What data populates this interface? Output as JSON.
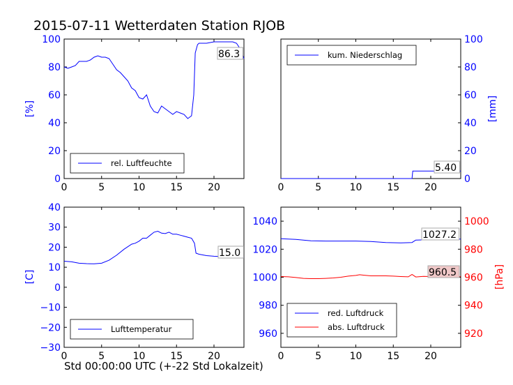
{
  "figure": {
    "title": "2015-07-11 Wetterdaten Station RJOB",
    "xlabel": "Std 00:00:00 UTC (+-22 Std Lokalzeit)"
  },
  "chart_data": [
    {
      "type": "line",
      "panel": "top-left",
      "ylabel": "[%]",
      "xlim": [
        0,
        24
      ],
      "ylim": [
        0,
        100
      ],
      "xticks": [
        0,
        5,
        10,
        15,
        20
      ],
      "yticks": [
        0,
        20,
        40,
        60,
        80,
        100
      ],
      "legend": "lower-left",
      "legend_entries": [
        "rel. Luftfeuchte"
      ],
      "annotation": "86.3",
      "series": [
        {
          "name": "rel. Luftfeuchte",
          "color": "#0000ff",
          "x": [
            0,
            0.5,
            1,
            1.5,
            2,
            2.5,
            3,
            3.5,
            4,
            4.5,
            5,
            5.5,
            6,
            6.5,
            7,
            7.5,
            8,
            8.5,
            9,
            9.5,
            10,
            10.5,
            11,
            11.5,
            12,
            12.5,
            13,
            13.5,
            14,
            14.5,
            15,
            15.5,
            16,
            16.5,
            17,
            17.3,
            17.5,
            17.8,
            18,
            19,
            20,
            21,
            22,
            22.5,
            23,
            23.5,
            24
          ],
          "y": [
            80,
            79,
            80,
            81,
            84,
            84,
            84,
            85,
            87,
            88,
            87,
            87,
            86,
            82,
            78,
            76,
            73,
            70,
            65,
            63,
            58,
            57,
            60,
            52,
            48,
            47,
            52,
            50,
            48,
            46,
            48,
            47,
            46,
            43,
            45,
            60,
            90,
            96,
            97,
            97,
            98,
            98,
            98,
            98,
            97,
            93,
            86
          ]
        }
      ]
    },
    {
      "type": "line",
      "panel": "top-right",
      "ylabel": "[mm]",
      "xlim": [
        0,
        24
      ],
      "ylim": [
        0,
        100
      ],
      "xticks": [
        0,
        5,
        10,
        15,
        20
      ],
      "yticks": [
        0,
        20,
        40,
        60,
        80,
        100
      ],
      "legend": "upper-left",
      "legend_entries": [
        "kum. Niederschlag"
      ],
      "annotation": "5.40",
      "series": [
        {
          "name": "kum. Niederschlag",
          "color": "#0000ff",
          "x": [
            0,
            17.5,
            17.6,
            24
          ],
          "y": [
            0,
            0,
            5.4,
            5.4
          ]
        }
      ]
    },
    {
      "type": "line",
      "panel": "bottom-left",
      "ylabel": "[C]",
      "xlim": [
        0,
        24
      ],
      "ylim": [
        -30,
        40
      ],
      "xticks": [
        0,
        5,
        10,
        15,
        20
      ],
      "yticks": [
        -30,
        -20,
        -10,
        0,
        10,
        20,
        30,
        40
      ],
      "legend": "lower-left",
      "legend_entries": [
        "Lufttemperatur"
      ],
      "annotation": "15.0",
      "series": [
        {
          "name": "Lufttemperatur",
          "color": "#0000ff",
          "x": [
            0,
            1,
            2,
            3,
            4,
            5,
            6,
            7,
            8,
            9,
            9.5,
            10,
            10.5,
            11,
            11.5,
            12,
            12.5,
            13,
            13.5,
            14,
            14.5,
            15,
            15.5,
            16,
            16.5,
            17,
            17.4,
            17.6,
            18,
            19,
            20,
            21,
            22,
            23,
            24
          ],
          "y": [
            13,
            12.7,
            12,
            11.8,
            11.7,
            12,
            13.5,
            16,
            19,
            21.5,
            22,
            23,
            24.5,
            24.5,
            26,
            27.5,
            28,
            27,
            26.8,
            27.5,
            26.5,
            26.5,
            26,
            25.5,
            25,
            24.5,
            22,
            17,
            16.5,
            15.8,
            15.5,
            15.3,
            15.3,
            15.1,
            15
          ]
        }
      ]
    },
    {
      "type": "line",
      "panel": "bottom-right",
      "ylabel": "[hPa]",
      "xlim": [
        0,
        24
      ],
      "ylim_left": [
        950,
        1050
      ],
      "ylim_right": [
        910,
        1010
      ],
      "xticks": [
        0,
        5,
        10,
        15,
        20
      ],
      "yticks_left": [
        960,
        980,
        1000,
        1020,
        1040
      ],
      "yticks_right": [
        920,
        940,
        960,
        980,
        1000
      ],
      "legend": "lower-left",
      "legend_entries": [
        "red. Luftdruck",
        "abs. Luftdruck"
      ],
      "annotations": [
        "1027.2",
        "960.5"
      ],
      "series": [
        {
          "name": "red. Luftdruck",
          "color": "#0000ff",
          "axis": "left",
          "x": [
            0,
            2,
            4,
            6,
            8,
            10,
            12,
            14,
            16,
            17.5,
            18,
            20,
            22,
            24
          ],
          "y": [
            1027.5,
            1027,
            1026,
            1025.8,
            1025.8,
            1025.8,
            1025.5,
            1024.8,
            1024.5,
            1024.8,
            1026.5,
            1026.8,
            1027,
            1027.2
          ]
        },
        {
          "name": "abs. Luftdruck",
          "color": "#ff0000",
          "axis": "right",
          "x": [
            0,
            1,
            2,
            3,
            4,
            5,
            6,
            7,
            8,
            9,
            10,
            10.5,
            11,
            12,
            13,
            14,
            15,
            16,
            17,
            17.5,
            18,
            19,
            20,
            21,
            22,
            23,
            24
          ],
          "y": [
            960.5,
            960.3,
            959.8,
            959.2,
            959,
            959,
            959.2,
            959.5,
            960,
            960.8,
            961.3,
            961.8,
            961.5,
            961,
            961,
            961,
            960.8,
            960.5,
            960.3,
            962,
            960.2,
            960.6,
            960.5,
            960.5,
            960.5,
            960.5,
            960.5
          ]
        }
      ]
    }
  ]
}
